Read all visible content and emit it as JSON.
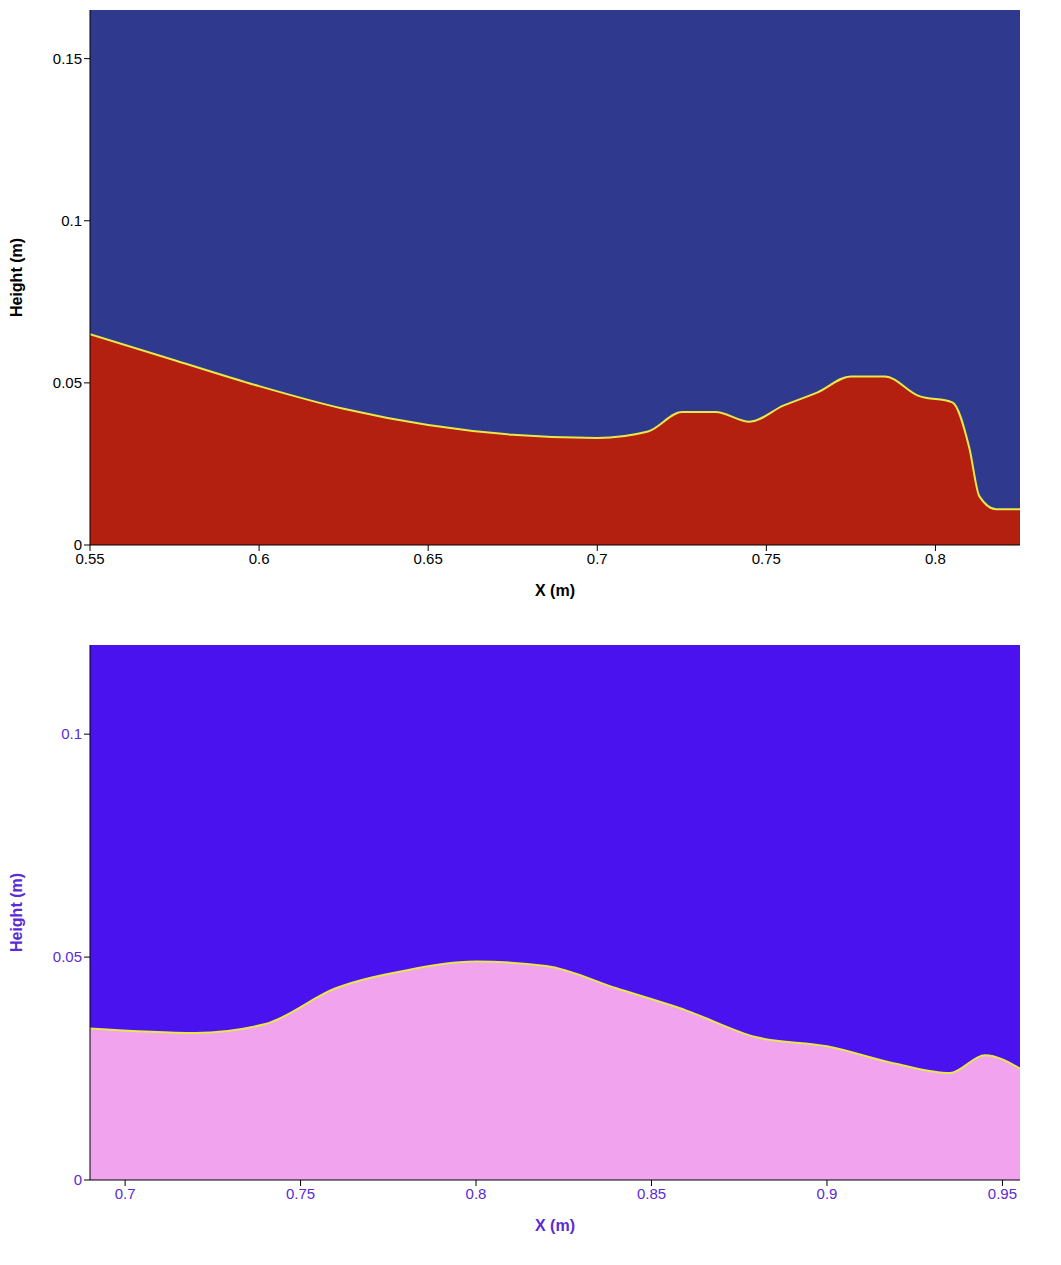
{
  "chart_data": [
    {
      "type": "area",
      "xlabel": "X (m)",
      "ylabel": "Height (m)",
      "color": "#b3200f",
      "x": [
        0.55,
        0.575,
        0.6,
        0.625,
        0.65,
        0.675,
        0.7,
        0.715,
        0.725,
        0.735,
        0.745,
        0.755,
        0.765,
        0.775,
        0.785,
        0.795,
        0.805,
        0.81,
        0.813,
        0.818,
        0.825
      ],
      "values": [
        0.065,
        0.057,
        0.049,
        0.042,
        0.037,
        0.034,
        0.033,
        0.035,
        0.041,
        0.041,
        0.038,
        0.043,
        0.047,
        0.052,
        0.052,
        0.046,
        0.044,
        0.03,
        0.015,
        0.011,
        0.011
      ],
      "xlim": [
        0.55,
        0.825
      ],
      "xticks": [
        0.55,
        0.6,
        0.65,
        0.7,
        0.75,
        0.8
      ],
      "ylim": [
        0,
        0.165
      ],
      "yticks": [
        0,
        0.05,
        0.1,
        0.15
      ],
      "grid": false
    },
    {
      "type": "area",
      "xlabel": "X (m)",
      "ylabel": "Height (m)",
      "color": "#f2a3ee",
      "x": [
        0.69,
        0.72,
        0.74,
        0.76,
        0.78,
        0.8,
        0.82,
        0.84,
        0.86,
        0.88,
        0.9,
        0.92,
        0.935,
        0.945,
        0.955
      ],
      "values": [
        0.034,
        0.033,
        0.035,
        0.043,
        0.047,
        0.049,
        0.048,
        0.043,
        0.038,
        0.032,
        0.03,
        0.026,
        0.024,
        0.028,
        0.025
      ],
      "xlim": [
        0.69,
        0.955
      ],
      "xticks": [
        0.7,
        0.75,
        0.8,
        0.85,
        0.9,
        0.95
      ],
      "ylim": [
        0,
        0.12
      ],
      "yticks": [
        0,
        0.05,
        0.1
      ],
      "grid": false
    }
  ]
}
